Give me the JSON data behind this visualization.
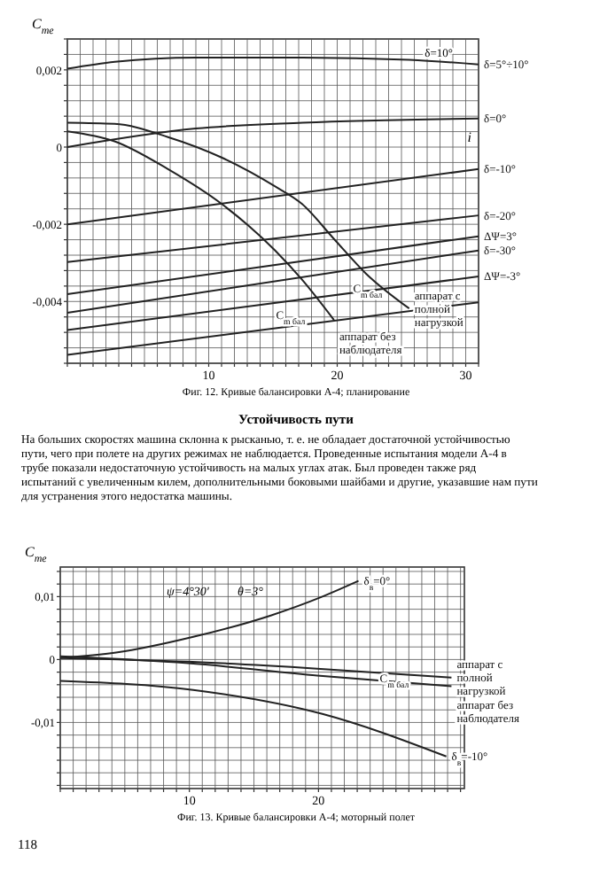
{
  "chart_data": [
    {
      "type": "line",
      "ylabel": "C$_{me}$",
      "xlabel": "i",
      "grid": true,
      "xlim": [
        -1,
        31
      ],
      "ylim": [
        -0.0056,
        0.0028
      ],
      "xticks": [
        {
          "value": -1,
          "label": null
        },
        {
          "value": 0,
          "label": null
        },
        {
          "value": 1,
          "label": null
        },
        {
          "value": 2,
          "label": null
        },
        {
          "value": 3,
          "label": null
        },
        {
          "value": 4,
          "label": null
        },
        {
          "value": 5,
          "label": null
        },
        {
          "value": 6,
          "label": null
        },
        {
          "value": 7,
          "label": null
        },
        {
          "value": 8,
          "label": null
        },
        {
          "value": 9,
          "label": null
        },
        10,
        {
          "value": 11,
          "label": null
        },
        {
          "value": 12,
          "label": null
        },
        {
          "value": 13,
          "label": null
        },
        {
          "value": 14,
          "label": null
        },
        {
          "value": 15,
          "label": null
        },
        {
          "value": 16,
          "label": null
        },
        {
          "value": 17,
          "label": null
        },
        {
          "value": 18,
          "label": null
        },
        {
          "value": 19,
          "label": null
        },
        20,
        {
          "value": 21,
          "label": null
        },
        {
          "value": 22,
          "label": null
        },
        {
          "value": 23,
          "label": null
        },
        {
          "value": 24,
          "label": null
        },
        {
          "value": 25,
          "label": null
        },
        {
          "value": 26,
          "label": null
        },
        {
          "value": 27,
          "label": null
        },
        {
          "value": 28,
          "label": null
        },
        {
          "value": 29,
          "label": null
        },
        30,
        {
          "value": 31,
          "label": null
        }
      ],
      "yticks": [
        {
          "value": -0.0056,
          "label": null
        },
        {
          "value": -0.0052,
          "label": null
        },
        {
          "value": -0.0048,
          "label": null
        },
        {
          "value": -0.0044,
          "label": null
        },
        {
          "value": -0.004,
          "label": "-0,004"
        },
        {
          "value": -0.0036,
          "label": null
        },
        {
          "value": -0.0032,
          "label": null
        },
        {
          "value": -0.0028,
          "label": null
        },
        {
          "value": -0.0024,
          "label": null
        },
        {
          "value": -0.002,
          "label": "-0,002"
        },
        {
          "value": -0.0016,
          "label": null
        },
        {
          "value": -0.0012,
          "label": null
        },
        {
          "value": -0.0008,
          "label": null
        },
        {
          "value": -0.0004,
          "label": null
        },
        0,
        {
          "value": 0.0004,
          "label": null
        },
        {
          "value": 0.0008,
          "label": null
        },
        {
          "value": 0.0012,
          "label": null
        },
        {
          "value": 0.0016,
          "label": null
        },
        {
          "value": 0.002,
          "label": "0,002"
        },
        {
          "value": 0.0024,
          "label": null
        },
        {
          "value": 0.0028,
          "label": null
        }
      ],
      "series": [
        {
          "name": "δ=5°÷10°",
          "color": "#222222",
          "x": [
            -1,
            2.7,
            9,
            17.3,
            25.6,
            31
          ],
          "values": [
            0.00203,
            0.00221,
            0.00232,
            0.00232,
            0.00226,
            0.00214
          ]
        },
        {
          "name": "δ=0°",
          "color": "#222222",
          "x": [
            -1,
            9,
            17.3,
            31
          ],
          "values": [
            0,
            0.00048,
            0.00063,
            0.00074
          ]
        },
        {
          "name": "δ=-10°",
          "color": "#222222",
          "x": [
            -1,
            31
          ],
          "values": [
            -0.002,
            -0.00057
          ]
        },
        {
          "name": "δ=-20°",
          "color": "#222222",
          "x": [
            -1,
            31
          ],
          "values": [
            -0.00298,
            -0.00177
          ]
        },
        {
          "name": "ΔΨ=3°",
          "color": "#222222",
          "x": [
            -1,
            31
          ],
          "values": [
            -0.00381,
            -0.00231
          ]
        },
        {
          "name": "δ=-30°",
          "color": "#222222",
          "x": [
            -1,
            31
          ],
          "values": [
            -0.00429,
            -0.00268
          ]
        },
        {
          "name": "ΔΨ=-3°",
          "color": "#222222",
          "x": [
            -1,
            31
          ],
          "values": [
            -0.00474,
            -0.00335
          ]
        },
        {
          "color": "#222222",
          "x": [
            -1,
            31
          ],
          "values": [
            -0.00538,
            -0.00402
          ]
        },
        {
          "name": "аппарат без наблюдателя",
          "color": "#222222",
          "x": [
            -1,
            2.67,
            6.83,
            11,
            15.17,
            17.25,
            19.75
          ],
          "values": [
            0.00041,
            0.00015,
            -0.00057,
            -0.00147,
            -0.00268,
            -0.00343,
            -0.00448
          ]
        },
        {
          "name": "аппарат с полной нагрузкой",
          "color": "#222222",
          "x": [
            -1,
            2.67,
            6.83,
            11,
            15.17,
            17.25,
            19.75,
            22.25,
            25.6
          ],
          "values": [
            0.00063,
            0.0006,
            0.00026,
            -0.00027,
            -0.00102,
            -0.00147,
            -0.00238,
            -0.00328,
            -0.00418
          ]
        }
      ],
      "annotations": [
        {
          "text": "δ=10°",
          "x": 29,
          "y": 0.0022
        },
        {
          "text": "C$_{m бал}$",
          "x": 17.5,
          "y": -0.0046
        },
        {
          "text": "C$_{m бал}$",
          "x": 23.5,
          "y": -0.0039
        },
        "Фиг. 12. Кривые балансировки А-4; планирование",
        "Устойчивость пути",
        "На больших скоростях машина склонна к рысканью, т. е. не обладает достаточной устойчивостью пути, чего при полете на других режимах не наблюдается. Проведенные испытания модели А-4 в трубе показали недостаточную устойчивость на малых углах атак. Был проведен также ряд испытаний с увеличенным килем, дополнительными боковыми шайбами и другие, указавшие нам пути для устранения этого недостатка машины."
      ]
    },
    {
      "type": "line",
      "ylabel": "C$_{me}$",
      "grid": true,
      "xlim": [
        0,
        31.3
      ],
      "ylim": [
        -0.0205,
        0.0147
      ],
      "xticks": [
        {
          "value": 0,
          "label": null
        },
        {
          "value": 1,
          "label": null
        },
        {
          "value": 2,
          "label": null
        },
        {
          "value": 3,
          "label": null
        },
        {
          "value": 4,
          "label": null
        },
        {
          "value": 5,
          "label": null
        },
        {
          "value": 6,
          "label": null
        },
        {
          "value": 7,
          "label": null
        },
        {
          "value": 8,
          "label": null
        },
        {
          "value": 9,
          "label": null
        },
        10,
        {
          "value": 11,
          "label": null
        },
        {
          "value": 12,
          "label": null
        },
        {
          "value": 13,
          "label": null
        },
        {
          "value": 14,
          "label": null
        },
        {
          "value": 15,
          "label": null
        },
        {
          "value": 16,
          "label": null
        },
        {
          "value": 17,
          "label": null
        },
        {
          "value": 18,
          "label": null
        },
        {
          "value": 19,
          "label": null
        },
        20,
        {
          "value": 21,
          "label": null
        },
        {
          "value": 22,
          "label": null
        },
        {
          "value": 23,
          "label": null
        },
        {
          "value": 24,
          "label": null
        },
        {
          "value": 25,
          "label": null
        },
        {
          "value": 26,
          "label": null
        },
        {
          "value": 27,
          "label": null
        },
        {
          "value": 28,
          "label": null
        },
        {
          "value": 29,
          "label": null
        },
        {
          "value": 30,
          "label": null
        },
        {
          "value": 31,
          "label": null
        }
      ],
      "yticks": [
        {
          "value": -0.02,
          "label": null
        },
        {
          "value": -0.018,
          "label": null
        },
        {
          "value": -0.016,
          "label": null
        },
        {
          "value": -0.014,
          "label": null
        },
        {
          "value": -0.012,
          "label": null
        },
        {
          "value": -0.01,
          "label": "-0,01"
        },
        {
          "value": -0.008,
          "label": null
        },
        {
          "value": -0.006,
          "label": null
        },
        {
          "value": -0.004,
          "label": null
        },
        {
          "value": -0.002,
          "label": null
        },
        0,
        {
          "value": 0.002,
          "label": null
        },
        {
          "value": 0.004,
          "label": null
        },
        {
          "value": 0.006,
          "label": null
        },
        {
          "value": 0.008,
          "label": null
        },
        {
          "value": 0.01,
          "label": "0,01"
        },
        {
          "value": 0.012,
          "label": null
        },
        {
          "value": 0.014,
          "label": null
        }
      ],
      "series": [
        {
          "name": "δ$_{в}$=0°",
          "color": "#222222",
          "x": [
            0,
            4.32,
            10.3,
            16.3,
            20.3,
            23.1
          ],
          "values": [
            0.00025,
            0.0011,
            0.0036,
            0.007,
            0.01,
            0.0125
          ]
        },
        {
          "name": "аппарат с полной нагрузкой",
          "color": "#222222",
          "x": [
            0,
            9.9,
            19.9,
            30.3
          ],
          "values": [
            0.00025,
            -0.00034,
            -0.00144,
            -0.00288
          ]
        },
        {
          "name": "аппарат без наблюдателя",
          "color": "#222222",
          "x": [
            0,
            9.9,
            19.9,
            30.3
          ],
          "values": [
            0.0005,
            -0.00059,
            -0.00254,
            -0.00424
          ]
        },
        {
          "name": "δ$_{в}$=-10°",
          "color": "#222222",
          "x": [
            0,
            10.3,
            20.3,
            29.9
          ],
          "values": [
            -0.00339,
            -0.00483,
            -0.00864,
            -0.0154
          ]
        }
      ],
      "annotations": [
        "ψ=4°30′",
        "θ=3°",
        {
          "text": "C$_{m бал}$",
          "x": 27,
          "y": -0.0045
        },
        "Фиг. 13. Кривые балансировки А-4; моторный полет",
        "118"
      ]
    }
  ]
}
